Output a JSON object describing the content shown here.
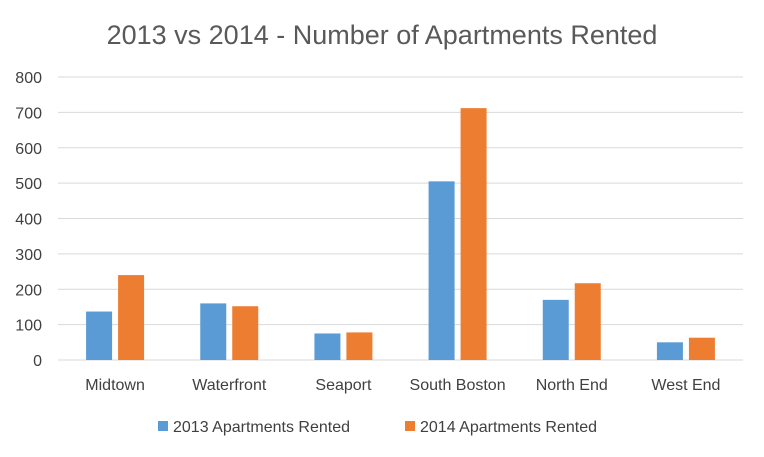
{
  "chart_data": {
    "type": "bar",
    "title": "2013 vs 2014 - Number of Apartments Rented",
    "categories": [
      "Midtown",
      "Waterfront",
      "Seaport",
      "South Boston",
      "North End",
      "West End"
    ],
    "series": [
      {
        "name": "2013 Apartments Rented",
        "color": "#5b9bd5",
        "values": [
          137,
          160,
          75,
          505,
          170,
          50
        ]
      },
      {
        "name": "2014 Apartments Rented",
        "color": "#ed7d31",
        "values": [
          240,
          152,
          78,
          712,
          217,
          63
        ]
      }
    ],
    "yticks": [
      "0",
      "100",
      "200",
      "300",
      "400",
      "500",
      "600",
      "700",
      "800"
    ],
    "ylim": [
      0,
      800
    ],
    "grid": true,
    "legend": "bottom"
  }
}
